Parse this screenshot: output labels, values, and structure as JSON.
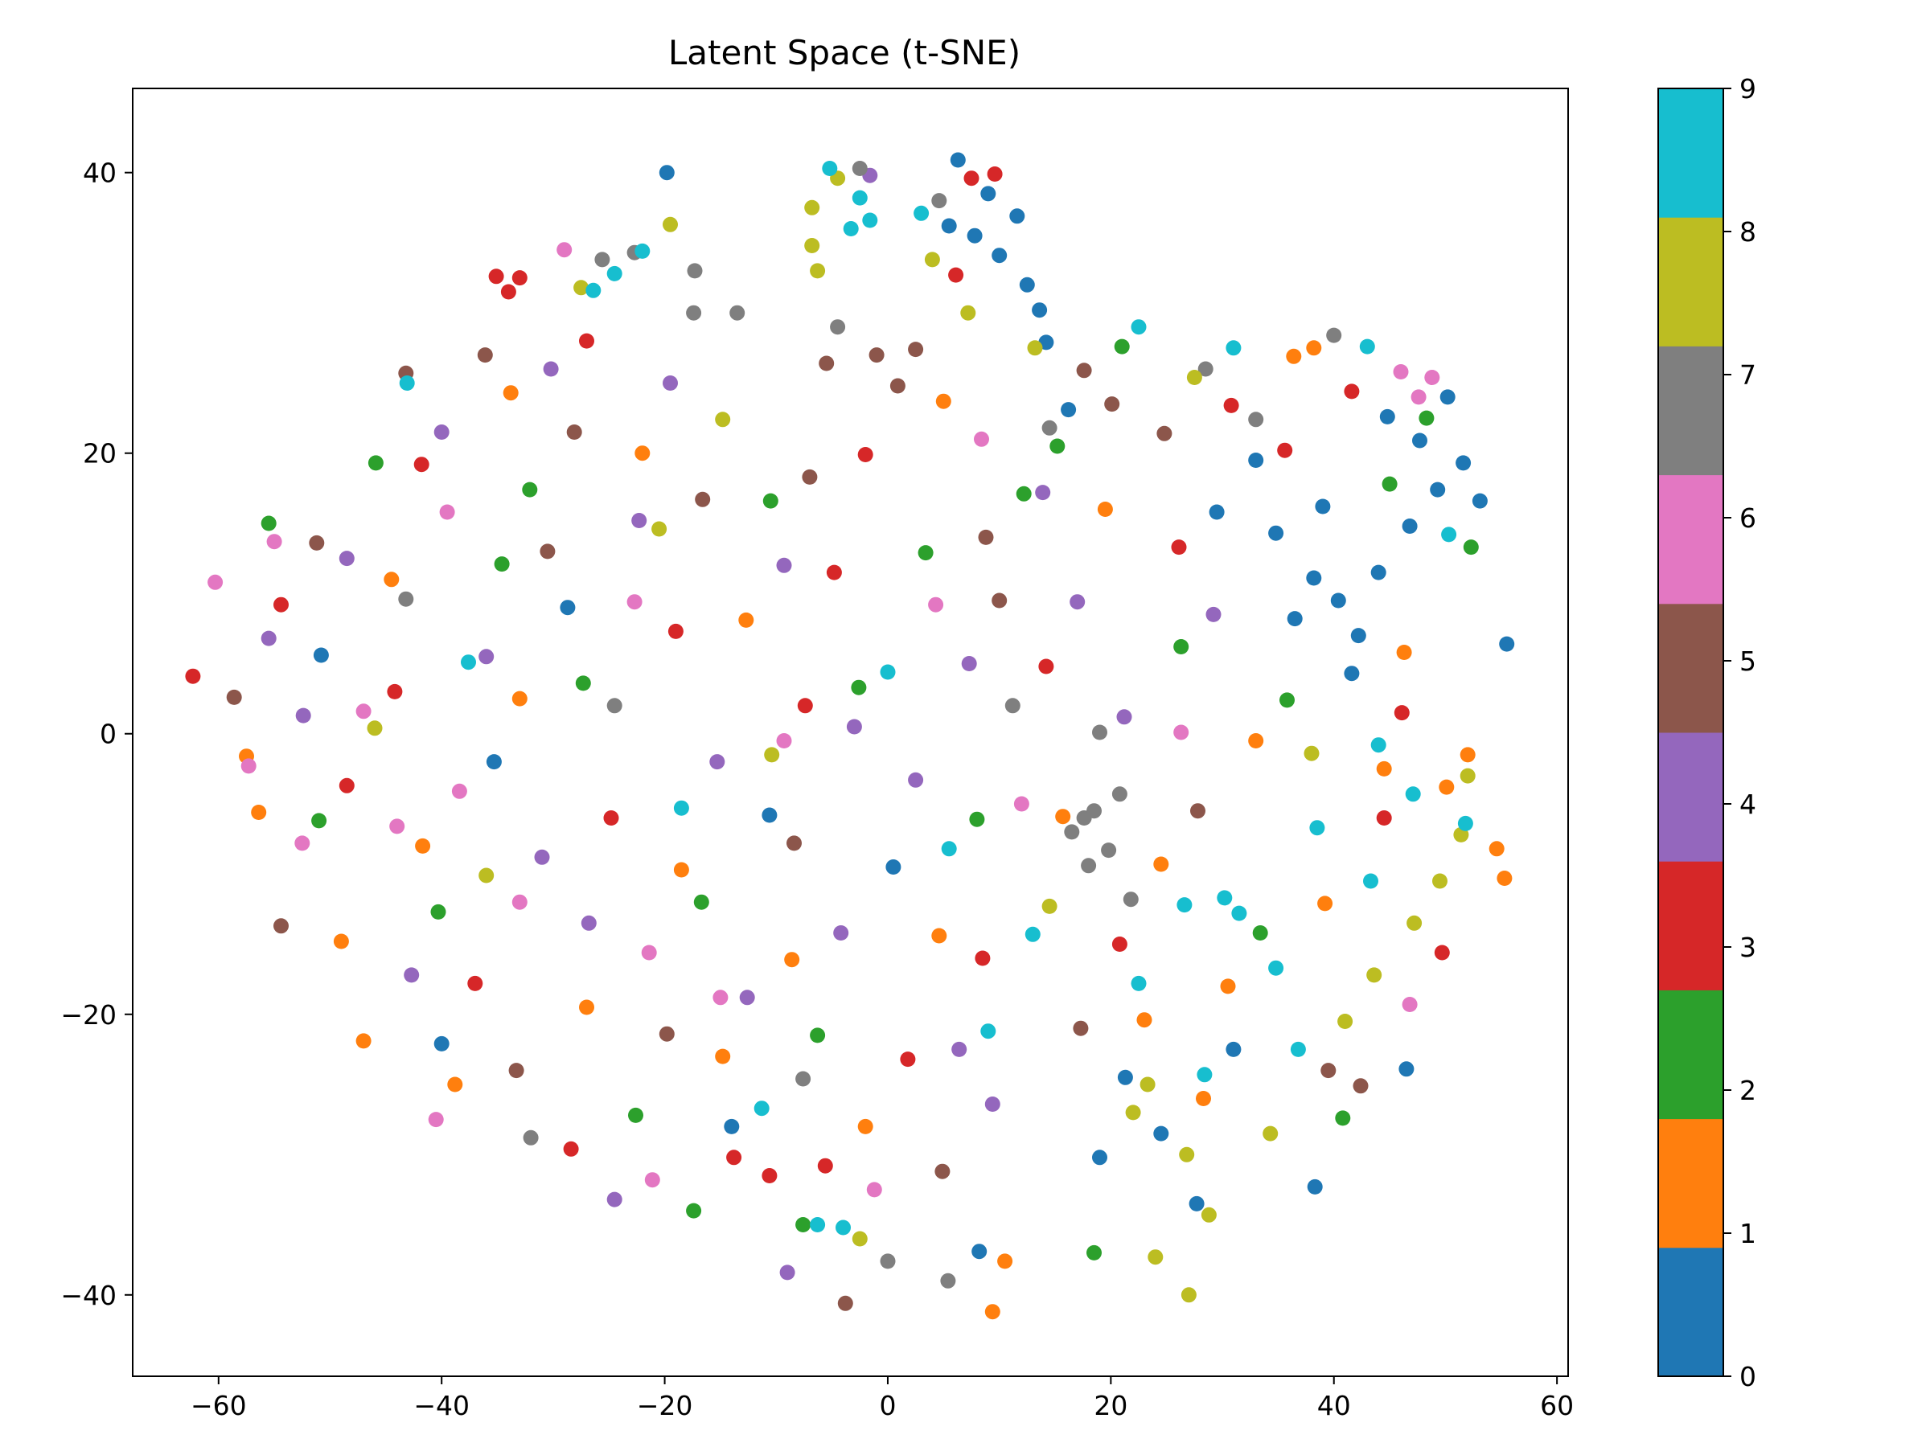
{
  "chart_data": {
    "type": "scatter",
    "title": "Latent Space (t-SNE)",
    "xlabel": "",
    "ylabel": "",
    "xlim": [
      -67.7,
      61.0
    ],
    "ylim": [
      -45.8,
      46.0
    ],
    "x_ticks": [
      -60,
      -40,
      -20,
      0,
      20,
      40,
      60
    ],
    "y_ticks": [
      -40,
      -20,
      0,
      20,
      40
    ],
    "x_tick_labels": [
      "−60",
      "−40",
      "−20",
      "0",
      "20",
      "40",
      "60"
    ],
    "y_tick_labels": [
      "−40",
      "−20",
      "0",
      "20",
      "40"
    ],
    "grid": false,
    "legend": "none",
    "colorbar": {
      "range": [
        0,
        9
      ],
      "ticks": [
        0,
        1,
        2,
        3,
        4,
        5,
        6,
        7,
        8,
        9
      ],
      "tick_labels": [
        "0",
        "1",
        "2",
        "3",
        "4",
        "5",
        "6",
        "7",
        "8",
        "9"
      ],
      "colors": [
        "#1f77b4",
        "#ff7f0e",
        "#2ca02c",
        "#d62728",
        "#9467bd",
        "#8c564b",
        "#e377c2",
        "#7f7f7f",
        "#bcbd22",
        "#17becf"
      ]
    },
    "points": [
      [
        5.5,
        36.2,
        0
      ],
      [
        7.8,
        35.5,
        0
      ],
      [
        10.0,
        34.1,
        0
      ],
      [
        12.5,
        32.0,
        0
      ],
      [
        13.6,
        30.2,
        0
      ],
      [
        9.0,
        38.5,
        0
      ],
      [
        11.6,
        36.9,
        0
      ],
      [
        6.3,
        40.9,
        0
      ],
      [
        14.2,
        27.9,
        0
      ],
      [
        38.2,
        11.1,
        0
      ],
      [
        40.4,
        9.5,
        0
      ],
      [
        42.2,
        7.0,
        0
      ],
      [
        36.5,
        8.2,
        0
      ],
      [
        44.0,
        11.5,
        0
      ],
      [
        46.8,
        14.8,
        0
      ],
      [
        49.3,
        17.4,
        0
      ],
      [
        51.6,
        19.3,
        0
      ],
      [
        53.1,
        16.6,
        0
      ],
      [
        47.7,
        20.9,
        0
      ],
      [
        34.8,
        14.3,
        0
      ],
      [
        39.0,
        16.2,
        0
      ],
      [
        55.5,
        6.4,
        0
      ],
      [
        50.2,
        24.0,
        0
      ],
      [
        44.8,
        22.6,
        0
      ],
      [
        29.5,
        15.8,
        0
      ],
      [
        33.0,
        19.5,
        0
      ],
      [
        41.6,
        4.3,
        0
      ],
      [
        -19.8,
        40.0,
        0
      ],
      [
        16.2,
        23.1,
        0
      ],
      [
        19.0,
        -30.2,
        0
      ],
      [
        24.5,
        -28.5,
        0
      ],
      [
        27.7,
        -33.5,
        0
      ],
      [
        21.3,
        -24.5,
        0
      ],
      [
        8.2,
        -36.9,
        0
      ],
      [
        -14.0,
        -28.0,
        0
      ],
      [
        -40.0,
        -22.1,
        0
      ],
      [
        46.5,
        -23.9,
        0
      ],
      [
        38.3,
        -32.3,
        0
      ],
      [
        31.0,
        -22.5,
        0
      ],
      [
        0.5,
        -9.5,
        0
      ],
      [
        -10.6,
        -5.8,
        0
      ],
      [
        -28.7,
        9.0,
        0
      ],
      [
        -50.8,
        5.6,
        0
      ],
      [
        -35.3,
        -2.0,
        0
      ],
      [
        -47.0,
        -21.9,
        1
      ],
      [
        -38.8,
        -25.0,
        1
      ],
      [
        -27.0,
        -19.5,
        1
      ],
      [
        -14.8,
        -23.0,
        1
      ],
      [
        -2.0,
        -28.0,
        1
      ],
      [
        9.4,
        -41.2,
        1
      ],
      [
        10.5,
        -37.6,
        1
      ],
      [
        23.0,
        -20.4,
        1
      ],
      [
        30.5,
        -18.0,
        1
      ],
      [
        39.2,
        -12.1,
        1
      ],
      [
        44.5,
        -2.5,
        1
      ],
      [
        50.1,
        -3.8,
        1
      ],
      [
        54.6,
        -8.2,
        1
      ],
      [
        55.3,
        -10.3,
        1
      ],
      [
        52.0,
        -1.5,
        1
      ],
      [
        46.3,
        5.8,
        1
      ],
      [
        38.2,
        27.5,
        1
      ],
      [
        36.4,
        26.9,
        1
      ],
      [
        -57.5,
        -1.6,
        1
      ],
      [
        -56.4,
        -5.6,
        1
      ],
      [
        -49.0,
        -14.8,
        1
      ],
      [
        -41.7,
        -8.0,
        1
      ],
      [
        -33.0,
        2.5,
        1
      ],
      [
        -18.5,
        -9.7,
        1
      ],
      [
        -8.6,
        -16.1,
        1
      ],
      [
        4.6,
        -14.4,
        1
      ],
      [
        15.7,
        -5.9,
        1
      ],
      [
        24.5,
        -9.3,
        1
      ],
      [
        33.0,
        -0.5,
        1
      ],
      [
        -12.7,
        8.1,
        1
      ],
      [
        -22.0,
        20.0,
        1
      ],
      [
        -33.8,
        24.3,
        1
      ],
      [
        -44.5,
        11.0,
        1
      ],
      [
        5.0,
        23.7,
        1
      ],
      [
        19.5,
        16.0,
        1
      ],
      [
        28.3,
        -26.0,
        1
      ],
      [
        -55.5,
        15.0,
        2
      ],
      [
        -45.9,
        19.3,
        2
      ],
      [
        -34.6,
        12.1,
        2
      ],
      [
        -27.3,
        3.6,
        2
      ],
      [
        -16.7,
        -12.0,
        2
      ],
      [
        -6.3,
        -21.5,
        2
      ],
      [
        -17.4,
        -34.0,
        2
      ],
      [
        -7.6,
        -35.0,
        2
      ],
      [
        18.5,
        -37.0,
        2
      ],
      [
        12.2,
        17.1,
        2
      ],
      [
        21.0,
        27.6,
        2
      ],
      [
        15.2,
        20.5,
        2
      ],
      [
        26.3,
        6.2,
        2
      ],
      [
        35.8,
        2.4,
        2
      ],
      [
        45.0,
        17.8,
        2
      ],
      [
        48.3,
        22.5,
        2
      ],
      [
        52.3,
        13.3,
        2
      ],
      [
        -2.6,
        3.3,
        2
      ],
      [
        8.0,
        -6.1,
        2
      ],
      [
        -40.3,
        -12.7,
        2
      ],
      [
        -51.0,
        -6.2,
        2
      ],
      [
        -32.1,
        17.4,
        2
      ],
      [
        -10.5,
        16.6,
        2
      ],
      [
        3.4,
        12.9,
        2
      ],
      [
        -22.6,
        -27.2,
        2
      ],
      [
        33.4,
        -14.2,
        2
      ],
      [
        40.8,
        -27.4,
        2
      ],
      [
        -33.0,
        32.5,
        3
      ],
      [
        -35.1,
        32.6,
        3
      ],
      [
        -34.0,
        31.5,
        3
      ],
      [
        -27.0,
        28.0,
        3
      ],
      [
        -41.8,
        19.2,
        3
      ],
      [
        -54.4,
        9.2,
        3
      ],
      [
        -62.3,
        4.1,
        3
      ],
      [
        -48.5,
        -3.7,
        3
      ],
      [
        -37.0,
        -17.8,
        3
      ],
      [
        -28.4,
        -29.6,
        3
      ],
      [
        -13.8,
        -30.2,
        3
      ],
      [
        -10.6,
        -31.5,
        3
      ],
      [
        -5.6,
        -30.8,
        3
      ],
      [
        1.8,
        -23.2,
        3
      ],
      [
        8.5,
        -16.0,
        3
      ],
      [
        7.5,
        39.6,
        3
      ],
      [
        9.6,
        39.9,
        3
      ],
      [
        6.1,
        32.7,
        3
      ],
      [
        14.2,
        4.8,
        3
      ],
      [
        26.1,
        13.3,
        3
      ],
      [
        30.8,
        23.4,
        3
      ],
      [
        35.6,
        20.2,
        3
      ],
      [
        41.6,
        24.4,
        3
      ],
      [
        46.1,
        1.5,
        3
      ],
      [
        44.5,
        -6.0,
        3
      ],
      [
        49.7,
        -15.6,
        3
      ],
      [
        -19.0,
        7.3,
        3
      ],
      [
        -7.4,
        2.0,
        3
      ],
      [
        -24.8,
        -6.0,
        3
      ],
      [
        -44.2,
        3.0,
        3
      ],
      [
        -4.8,
        11.5,
        3
      ],
      [
        20.8,
        -15.0,
        3
      ],
      [
        -2.0,
        19.9,
        3
      ],
      [
        -55.5,
        6.8,
        4
      ],
      [
        -48.5,
        12.5,
        4
      ],
      [
        -40.0,
        21.5,
        4
      ],
      [
        -30.2,
        26.0,
        4
      ],
      [
        -19.5,
        25.0,
        4
      ],
      [
        -9.3,
        12.0,
        4
      ],
      [
        -3.0,
        0.5,
        4
      ],
      [
        -15.3,
        -2.0,
        4
      ],
      [
        -31.0,
        -8.8,
        4
      ],
      [
        -42.7,
        -17.2,
        4
      ],
      [
        -24.5,
        -33.2,
        4
      ],
      [
        -9.0,
        -38.4,
        4
      ],
      [
        6.4,
        -22.5,
        4
      ],
      [
        -4.2,
        -14.2,
        4
      ],
      [
        7.3,
        5.0,
        4
      ],
      [
        17.0,
        9.4,
        4
      ],
      [
        13.9,
        17.2,
        4
      ],
      [
        -1.6,
        39.8,
        4
      ],
      [
        21.2,
        1.2,
        4
      ],
      [
        9.4,
        -26.4,
        4
      ],
      [
        -36.0,
        5.5,
        4
      ],
      [
        -52.4,
        1.3,
        4
      ],
      [
        -22.3,
        15.2,
        4
      ],
      [
        2.5,
        -3.3,
        4
      ],
      [
        -12.6,
        -18.8,
        4
      ],
      [
        29.2,
        8.5,
        4
      ],
      [
        -26.8,
        -13.5,
        4
      ],
      [
        -43.2,
        25.7,
        5
      ],
      [
        -36.1,
        27.0,
        5
      ],
      [
        -28.1,
        21.5,
        5
      ],
      [
        -16.6,
        16.7,
        5
      ],
      [
        -5.5,
        26.4,
        5
      ],
      [
        -1.0,
        27.0,
        5
      ],
      [
        0.9,
        24.8,
        5
      ],
      [
        2.5,
        27.4,
        5
      ],
      [
        -7.0,
        18.3,
        5
      ],
      [
        17.6,
        25.9,
        5
      ],
      [
        20.1,
        23.5,
        5
      ],
      [
        24.8,
        21.4,
        5
      ],
      [
        8.8,
        14.0,
        5
      ],
      [
        -51.2,
        13.6,
        5
      ],
      [
        -58.6,
        2.6,
        5
      ],
      [
        -54.4,
        -13.7,
        5
      ],
      [
        -33.3,
        -24.0,
        5
      ],
      [
        -19.8,
        -21.4,
        5
      ],
      [
        -3.8,
        -40.6,
        5
      ],
      [
        4.9,
        -31.2,
        5
      ],
      [
        17.3,
        -21.0,
        5
      ],
      [
        27.8,
        -5.5,
        5
      ],
      [
        39.5,
        -24.0,
        5
      ],
      [
        42.4,
        -25.1,
        5
      ],
      [
        10.0,
        9.5,
        5
      ],
      [
        -8.4,
        -7.8,
        5
      ],
      [
        -30.5,
        13.0,
        5
      ],
      [
        -55.0,
        13.7,
        6
      ],
      [
        -60.3,
        10.8,
        6
      ],
      [
        -57.3,
        -2.3,
        6
      ],
      [
        -52.5,
        -7.8,
        6
      ],
      [
        -47.0,
        1.6,
        6
      ],
      [
        -44.0,
        -6.6,
        6
      ],
      [
        -38.4,
        -4.1,
        6
      ],
      [
        -33.0,
        -12.0,
        6
      ],
      [
        -21.4,
        -15.6,
        6
      ],
      [
        -15.0,
        -18.8,
        6
      ],
      [
        -29.0,
        34.5,
        6
      ],
      [
        -21.1,
        -31.8,
        6
      ],
      [
        -1.2,
        -32.5,
        6
      ],
      [
        8.4,
        21.0,
        6
      ],
      [
        12.0,
        -5.0,
        6
      ],
      [
        26.3,
        0.1,
        6
      ],
      [
        46.0,
        25.8,
        6
      ],
      [
        47.6,
        24.0,
        6
      ],
      [
        48.8,
        25.4,
        6
      ],
      [
        46.8,
        -19.3,
        6
      ],
      [
        -39.5,
        15.8,
        6
      ],
      [
        -22.7,
        9.4,
        6
      ],
      [
        -9.3,
        -0.5,
        6
      ],
      [
        4.3,
        9.2,
        6
      ],
      [
        -40.5,
        -27.5,
        6
      ],
      [
        -17.3,
        33.0,
        7
      ],
      [
        -22.7,
        34.3,
        7
      ],
      [
        -25.6,
        33.8,
        7
      ],
      [
        -17.4,
        30.0,
        7
      ],
      [
        -13.5,
        30.0,
        7
      ],
      [
        -4.5,
        29.0,
        7
      ],
      [
        14.5,
        21.8,
        7
      ],
      [
        19.0,
        0.1,
        7
      ],
      [
        17.6,
        -6.0,
        7
      ],
      [
        18.5,
        -5.5,
        7
      ],
      [
        16.5,
        -7.0,
        7
      ],
      [
        19.8,
        -8.3,
        7
      ],
      [
        18.0,
        -9.4,
        7
      ],
      [
        20.8,
        -4.3,
        7
      ],
      [
        21.8,
        -11.8,
        7
      ],
      [
        28.5,
        26.0,
        7
      ],
      [
        33.0,
        22.4,
        7
      ],
      [
        40.0,
        28.4,
        7
      ],
      [
        4.6,
        38.0,
        7
      ],
      [
        -2.5,
        40.3,
        7
      ],
      [
        11.2,
        2.0,
        7
      ],
      [
        -7.6,
        -24.6,
        7
      ],
      [
        0.0,
        -37.6,
        7
      ],
      [
        5.4,
        -39.0,
        7
      ],
      [
        -32.0,
        -28.8,
        7
      ],
      [
        -43.2,
        9.6,
        7
      ],
      [
        -24.5,
        2.0,
        7
      ],
      [
        -4.5,
        39.6,
        8
      ],
      [
        -6.8,
        37.5,
        8
      ],
      [
        -6.3,
        33.0,
        8
      ],
      [
        -6.8,
        34.8,
        8
      ],
      [
        4.0,
        33.8,
        8
      ],
      [
        7.2,
        30.0,
        8
      ],
      [
        13.2,
        27.5,
        8
      ],
      [
        -19.5,
        36.3,
        8
      ],
      [
        -27.5,
        31.8,
        8
      ],
      [
        27.0,
        -40.0,
        8
      ],
      [
        24.0,
        -37.3,
        8
      ],
      [
        28.8,
        -34.3,
        8
      ],
      [
        22.0,
        -27.0,
        8
      ],
      [
        23.3,
        -25.0,
        8
      ],
      [
        26.8,
        -30.0,
        8
      ],
      [
        34.3,
        -28.5,
        8
      ],
      [
        41.0,
        -20.5,
        8
      ],
      [
        43.6,
        -17.2,
        8
      ],
      [
        49.5,
        -10.5,
        8
      ],
      [
        51.4,
        -7.2,
        8
      ],
      [
        52.0,
        -3.0,
        8
      ],
      [
        47.2,
        -13.5,
        8
      ],
      [
        27.5,
        25.4,
        8
      ],
      [
        -46.0,
        0.4,
        8
      ],
      [
        -20.5,
        14.6,
        8
      ],
      [
        -2.5,
        -36.0,
        8
      ],
      [
        38.0,
        -1.4,
        8
      ],
      [
        -10.4,
        -1.5,
        8
      ],
      [
        14.5,
        -12.3,
        8
      ],
      [
        -36.0,
        -10.1,
        8
      ],
      [
        -14.8,
        22.4,
        8
      ],
      [
        -26.4,
        31.6,
        9
      ],
      [
        -24.5,
        32.8,
        9
      ],
      [
        -22.0,
        34.4,
        9
      ],
      [
        -2.5,
        38.2,
        9
      ],
      [
        -1.6,
        36.6,
        9
      ],
      [
        3.0,
        37.1,
        9
      ],
      [
        -5.2,
        40.3,
        9
      ],
      [
        -3.3,
        36.0,
        9
      ],
      [
        22.5,
        29.0,
        9
      ],
      [
        31.0,
        27.5,
        9
      ],
      [
        43.0,
        27.6,
        9
      ],
      [
        50.3,
        14.2,
        9
      ],
      [
        47.1,
        -4.3,
        9
      ],
      [
        44.0,
        -0.8,
        9
      ],
      [
        51.8,
        -6.4,
        9
      ],
      [
        43.3,
        -10.5,
        9
      ],
      [
        34.8,
        -16.7,
        9
      ],
      [
        30.2,
        -11.7,
        9
      ],
      [
        26.6,
        -12.2,
        9
      ],
      [
        13.0,
        -14.3,
        9
      ],
      [
        5.5,
        -8.2,
        9
      ],
      [
        9.0,
        -21.2,
        9
      ],
      [
        28.4,
        -24.3,
        9
      ],
      [
        36.8,
        -22.5,
        9
      ],
      [
        31.5,
        -12.8,
        9
      ],
      [
        -4.0,
        -35.2,
        9
      ],
      [
        -6.3,
        -35.0,
        9
      ],
      [
        -43.1,
        25.0,
        9
      ],
      [
        -37.6,
        5.1,
        9
      ],
      [
        -18.5,
        -5.3,
        9
      ],
      [
        0.0,
        4.4,
        9
      ],
      [
        -11.3,
        -26.7,
        9
      ],
      [
        38.5,
        -6.7,
        9
      ],
      [
        22.5,
        -17.8,
        9
      ]
    ]
  }
}
